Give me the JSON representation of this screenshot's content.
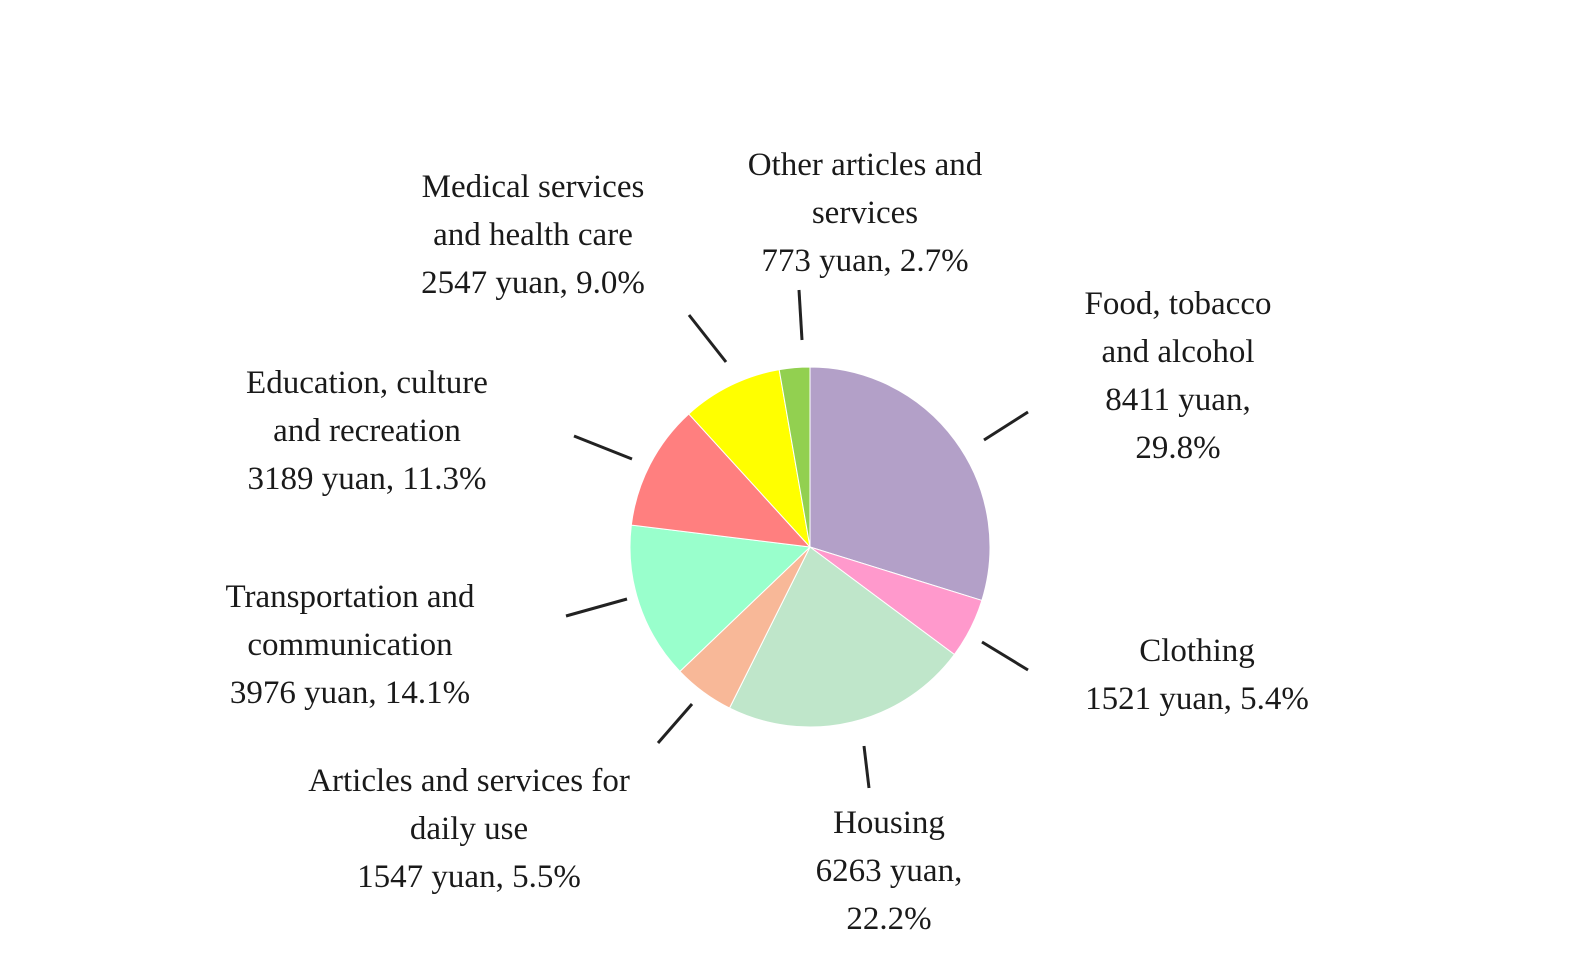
{
  "chart_data": {
    "type": "pie",
    "title": "",
    "start": "top",
    "direction": "clockwise",
    "slices": [
      {
        "key": "food",
        "lines": [
          "Food, tobacco",
          "and alcohol",
          "8411 yuan,",
          "29.8%"
        ],
        "value": 8411,
        "percent": 29.8,
        "color": "#B3A0C8"
      },
      {
        "key": "clothing",
        "lines": [
          "Clothing",
          "1521 yuan, 5.4%"
        ],
        "value": 1521,
        "percent": 5.4,
        "color": "#FF99CC"
      },
      {
        "key": "housing",
        "lines": [
          "Housing",
          "6263 yuan,",
          "22.2%"
        ],
        "value": 6263,
        "percent": 22.2,
        "color": "#BFE6CA"
      },
      {
        "key": "daily",
        "lines": [
          "Articles and services for",
          "daily use",
          "1547 yuan, 5.5%"
        ],
        "value": 1547,
        "percent": 5.5,
        "color": "#F8B898"
      },
      {
        "key": "transport",
        "lines": [
          "Transportation and",
          "communication",
          "3976 yuan, 14.1%"
        ],
        "value": 3976,
        "percent": 14.1,
        "color": "#99FFCC"
      },
      {
        "key": "education",
        "lines": [
          "Education, culture",
          "and recreation",
          "3189 yuan, 11.3%"
        ],
        "value": 3189,
        "percent": 11.3,
        "color": "#FF7F7F"
      },
      {
        "key": "medical",
        "lines": [
          "Medical services",
          "and health care",
          "2547 yuan, 9.0%"
        ],
        "value": 2547,
        "percent": 9.0,
        "color": "#FFFF00"
      },
      {
        "key": "other",
        "lines": [
          "Other articles and",
          "services",
          "773 yuan, 2.7%"
        ],
        "value": 773,
        "percent": 2.7,
        "color": "#92D050"
      }
    ]
  }
}
